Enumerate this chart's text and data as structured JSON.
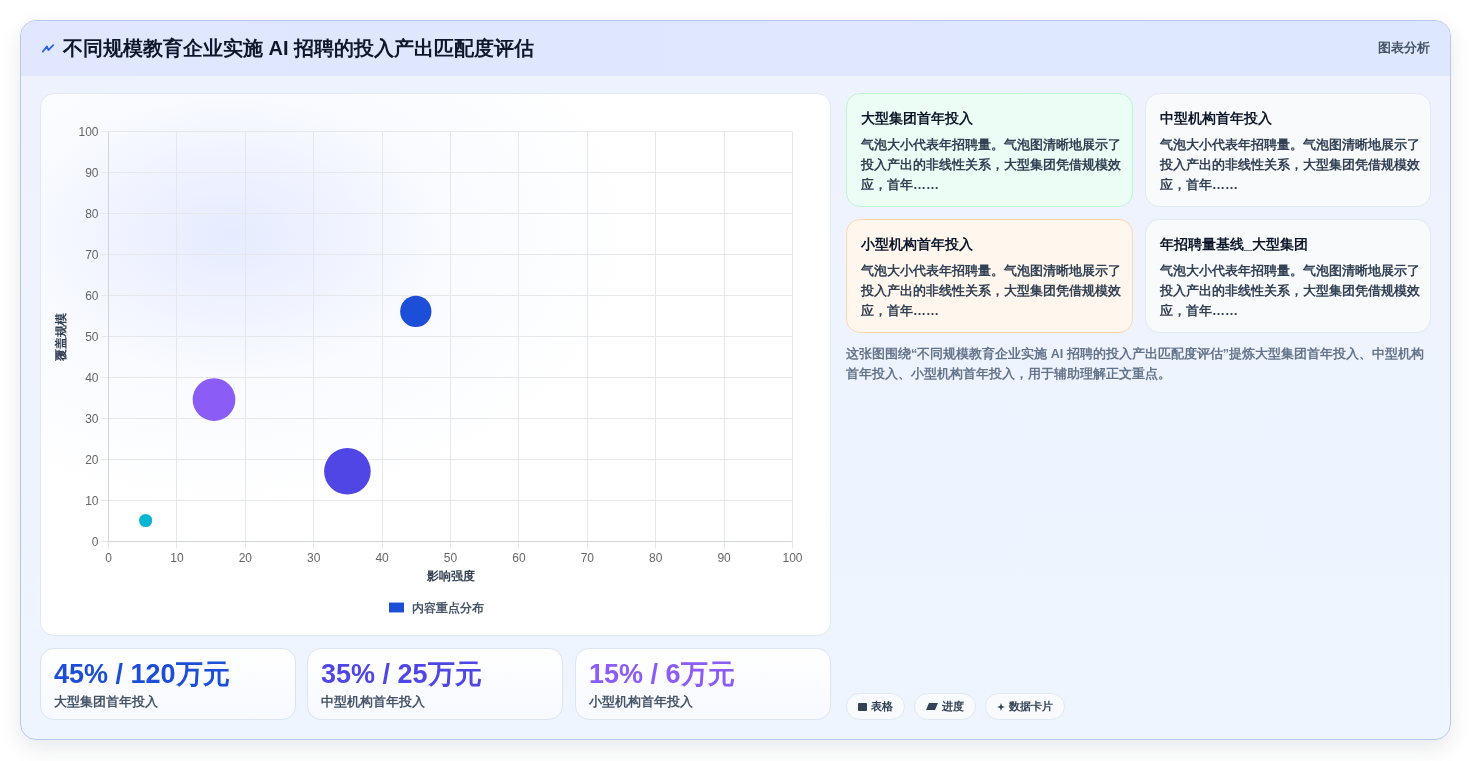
{
  "chart_data": {
    "type": "bubble",
    "title": "不同规模教育企业实施 AI 招聘的投入产出匹配度评估",
    "xlabel": "影响强度",
    "ylabel": "覆盖规模",
    "x": [
      45,
      35,
      15.5,
      5.5
    ],
    "series": [
      {
        "name": "内容重点分布",
        "colors": [
          "#1d4ed8",
          "#4f46e5",
          "#8b5cf6",
          "#06b6d4"
        ],
        "values": [
          56,
          17,
          34.5,
          5
        ],
        "sizes": [
          0.45,
          1,
          0.84,
          0.08
        ]
      }
    ],
    "xlim": [
      0,
      100
    ],
    "ylim": [
      0,
      100
    ],
    "xticks": [
      0,
      10,
      20,
      30,
      40,
      50,
      60,
      70,
      80,
      90,
      100
    ],
    "yticks": [
      0,
      10,
      20,
      30,
      40,
      50,
      60,
      70,
      80,
      90,
      100
    ],
    "grid": true,
    "legend": "bottom",
    "marker": "circle",
    "annotations": [
      "图表分析",
      "45% / 120万元",
      "大型集团首年投入",
      "35% / 25万元",
      "中型机构首年投入",
      "15% / 6万元",
      "小型机构首年投入",
      "大型集团首年投入",
      "气泡大小代表年招聘量。气泡图清晰地展示了投入产出的非线性关系，大型集团凭借规模效应，首年……",
      "中型机构首年投入",
      "气泡大小代表年招聘量。气泡图清晰地展示了投入产出的非线性关系，大型集团凭借规模效应，首年……",
      "小型机构首年投入",
      "气泡大小代表年招聘量。气泡图清晰地展示了投入产出的非线性关系，大型集团凭借规模效应，首年……",
      "年招聘量基线_大型集团",
      "气泡大小代表年招聘量。气泡图清晰地展示了投入产出的非线性关系，大型集团凭借规模效应，首年……",
      "这张图围绕“不同规模教育企业实施 AI 招聘的投入产出匹配度评估”提炼大型集团首年投入、中型机构首年投入、小型机构首年投入，用于辅助理解正文重点。",
      "表格",
      "进度",
      "数据卡片"
    ]
  }
}
